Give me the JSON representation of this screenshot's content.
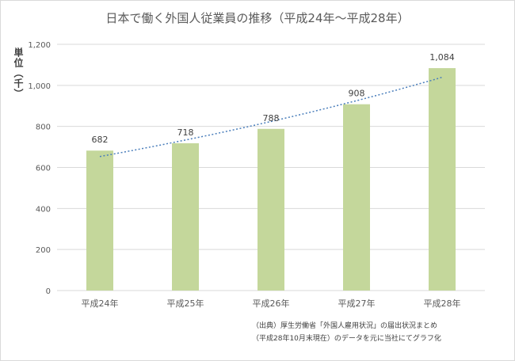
{
  "chart_data": {
    "type": "bar",
    "title": "日本で働く外国人従業員の推移（平成24年〜平成28年）",
    "ylabel": "単位（千）",
    "categories": [
      "平成24年",
      "平成25年",
      "平成26年",
      "平成27年",
      "平成28年"
    ],
    "values": [
      682,
      718,
      788,
      908,
      1084
    ],
    "value_labels": [
      "682",
      "718",
      "788",
      "908",
      "1,084"
    ],
    "ylim": [
      0,
      1200
    ],
    "yticks": [
      0,
      200,
      400,
      600,
      800,
      1000,
      1200
    ],
    "ytick_labels": [
      "0",
      "200",
      "400",
      "600",
      "800",
      "1,000",
      "1,200"
    ],
    "grid": true,
    "trendline": "exponential",
    "colors": {
      "bar": "#c4d79b",
      "grid": "#d9d9d9",
      "trendline": "#4a7ebb"
    }
  },
  "source_note": {
    "line1": "（出典）厚生労働省「外国人雇用状況」の届出状況まとめ",
    "line2": "（平成28年10月末現在）のデータを元に当社にてグラフ化"
  }
}
